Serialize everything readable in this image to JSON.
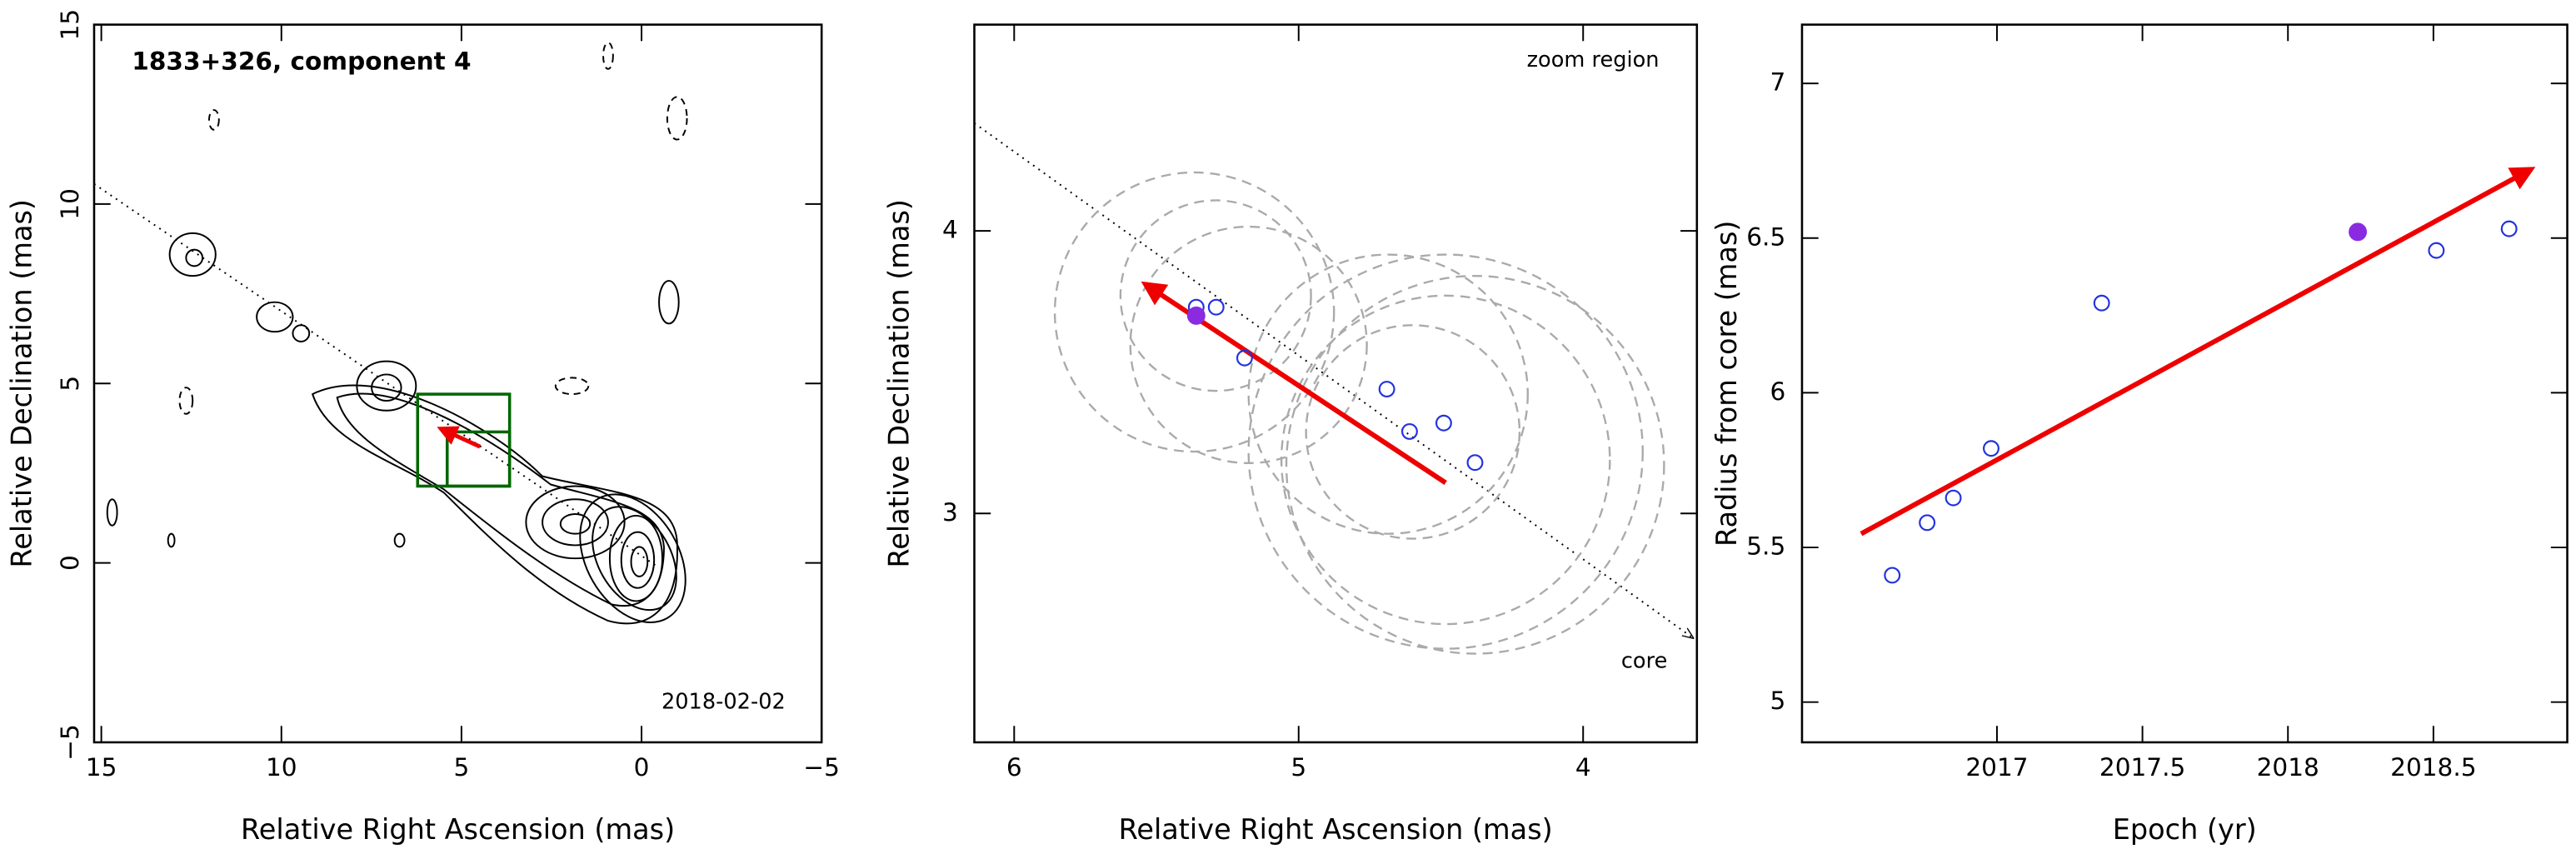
{
  "chart_data": [
    {
      "type": "contour",
      "title": "1833+326, component 4",
      "date": "2018-02-02",
      "xlabel": "Relative Right Ascension (mas)",
      "ylabel": "Relative Declination (mas)",
      "xlim": [
        15.2,
        -5
      ],
      "ylim": [
        -5,
        15
      ],
      "xticks": [
        15,
        10,
        5,
        0,
        {
          "value": -5,
          "label": "−5"
        }
      ],
      "yticks": [
        {
          "value": -5,
          "label": "−5"
        },
        0,
        5,
        10,
        15
      ]
    },
    {
      "type": "scatter",
      "annotations": [
        "zoom region",
        "core"
      ],
      "xlabel": "Relative Right Ascension (mas)",
      "ylabel": "Relative Declination (mas)",
      "xlim": [
        6.14,
        3.6
      ],
      "ylim": [
        2.19,
        4.73
      ],
      "xticks": [
        6,
        5,
        4
      ],
      "yticks": [
        3,
        4
      ],
      "series": [
        {
          "color": "#2233dd",
          "filled": false,
          "x": [
            5.36,
            5.29,
            5.19,
            4.69,
            4.61,
            4.49,
            4.38
          ],
          "values": [
            3.73,
            3.73,
            3.55,
            3.44,
            3.29,
            3.32,
            3.18
          ]
        },
        {
          "color": "#8a2be2",
          "filled": true,
          "x": [
            5.36
          ],
          "values": [
            3.7
          ]
        }
      ]
    },
    {
      "type": "scatter",
      "xlabel": "Epoch (yr)",
      "ylabel": "Radius from core (mas)",
      "xlim": [
        2016.33,
        2018.96
      ],
      "ylim": [
        4.87,
        7.19
      ],
      "xticks": [
        2017,
        2017.5,
        2018,
        2018.5
      ],
      "yticks": [
        5,
        5.5,
        6,
        6.5,
        7
      ],
      "series": [
        {
          "color": "#2233dd",
          "filled": false,
          "x": [
            2016.64,
            2016.76,
            2016.85,
            2016.98,
            2017.36,
            2018.51,
            2018.76
          ],
          "values": [
            5.41,
            5.58,
            5.66,
            5.82,
            6.29,
            6.46,
            6.53
          ]
        },
        {
          "color": "#8a2be2",
          "filled": true,
          "x": [
            2018.24
          ],
          "values": [
            6.52
          ]
        }
      ]
    }
  ]
}
